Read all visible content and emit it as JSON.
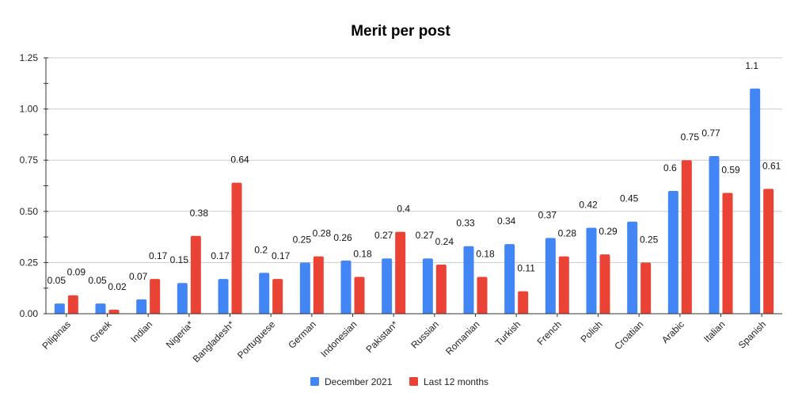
{
  "chart_data": {
    "type": "bar",
    "title": "Merit per post",
    "xlabel": "",
    "ylabel": "",
    "categories": [
      "Pilipinas",
      "Greek",
      "Indian",
      "Nigeria*",
      "Bangladesh*",
      "Portuguese",
      "German",
      "Indonesian",
      "Pakistan*",
      "Russian",
      "Romanian",
      "Turkish",
      "French",
      "Polish",
      "Croatian",
      "Arabic",
      "Italian",
      "Spanish"
    ],
    "series": [
      {
        "name": "December 2021",
        "color": "#4285f4",
        "values": [
          0.05,
          0.05,
          0.07,
          0.15,
          0.17,
          0.2,
          0.25,
          0.26,
          0.27,
          0.27,
          0.33,
          0.34,
          0.37,
          0.42,
          0.45,
          0.6,
          0.77,
          1.1
        ],
        "labels": [
          "0.05",
          "0.05",
          "0.07",
          "0.15",
          "0.17",
          "0.2",
          "0.25",
          "0.26",
          "0.27",
          "0.27",
          "0.33",
          "0.34",
          "0.37",
          "0.42",
          "0.45",
          "0.6",
          "0.77",
          "1.1"
        ]
      },
      {
        "name": "Last 12 months",
        "color": "#ea4335",
        "values": [
          0.09,
          0.02,
          0.17,
          0.38,
          0.64,
          0.17,
          0.28,
          0.18,
          0.4,
          0.24,
          0.18,
          0.11,
          0.28,
          0.29,
          0.25,
          0.75,
          0.59,
          0.61
        ],
        "labels": [
          "0.09",
          "0.02",
          "0.17",
          "0.38",
          "0.64",
          "0.17",
          "0.28",
          "0.18",
          "0.4",
          "0.24",
          "0.18",
          "0.11",
          "0.28",
          "0.29",
          "0.25",
          "0.75",
          "0.59",
          "0.61"
        ]
      }
    ],
    "ylim": [
      0,
      1.25
    ],
    "yticks": [
      0,
      0.25,
      0.5,
      0.75,
      1.0,
      1.25
    ],
    "ytick_labels": [
      "0.00",
      "0.25",
      "0.50",
      "0.75",
      "1.00",
      "1.25"
    ],
    "grid": true,
    "legend_position": "bottom"
  }
}
